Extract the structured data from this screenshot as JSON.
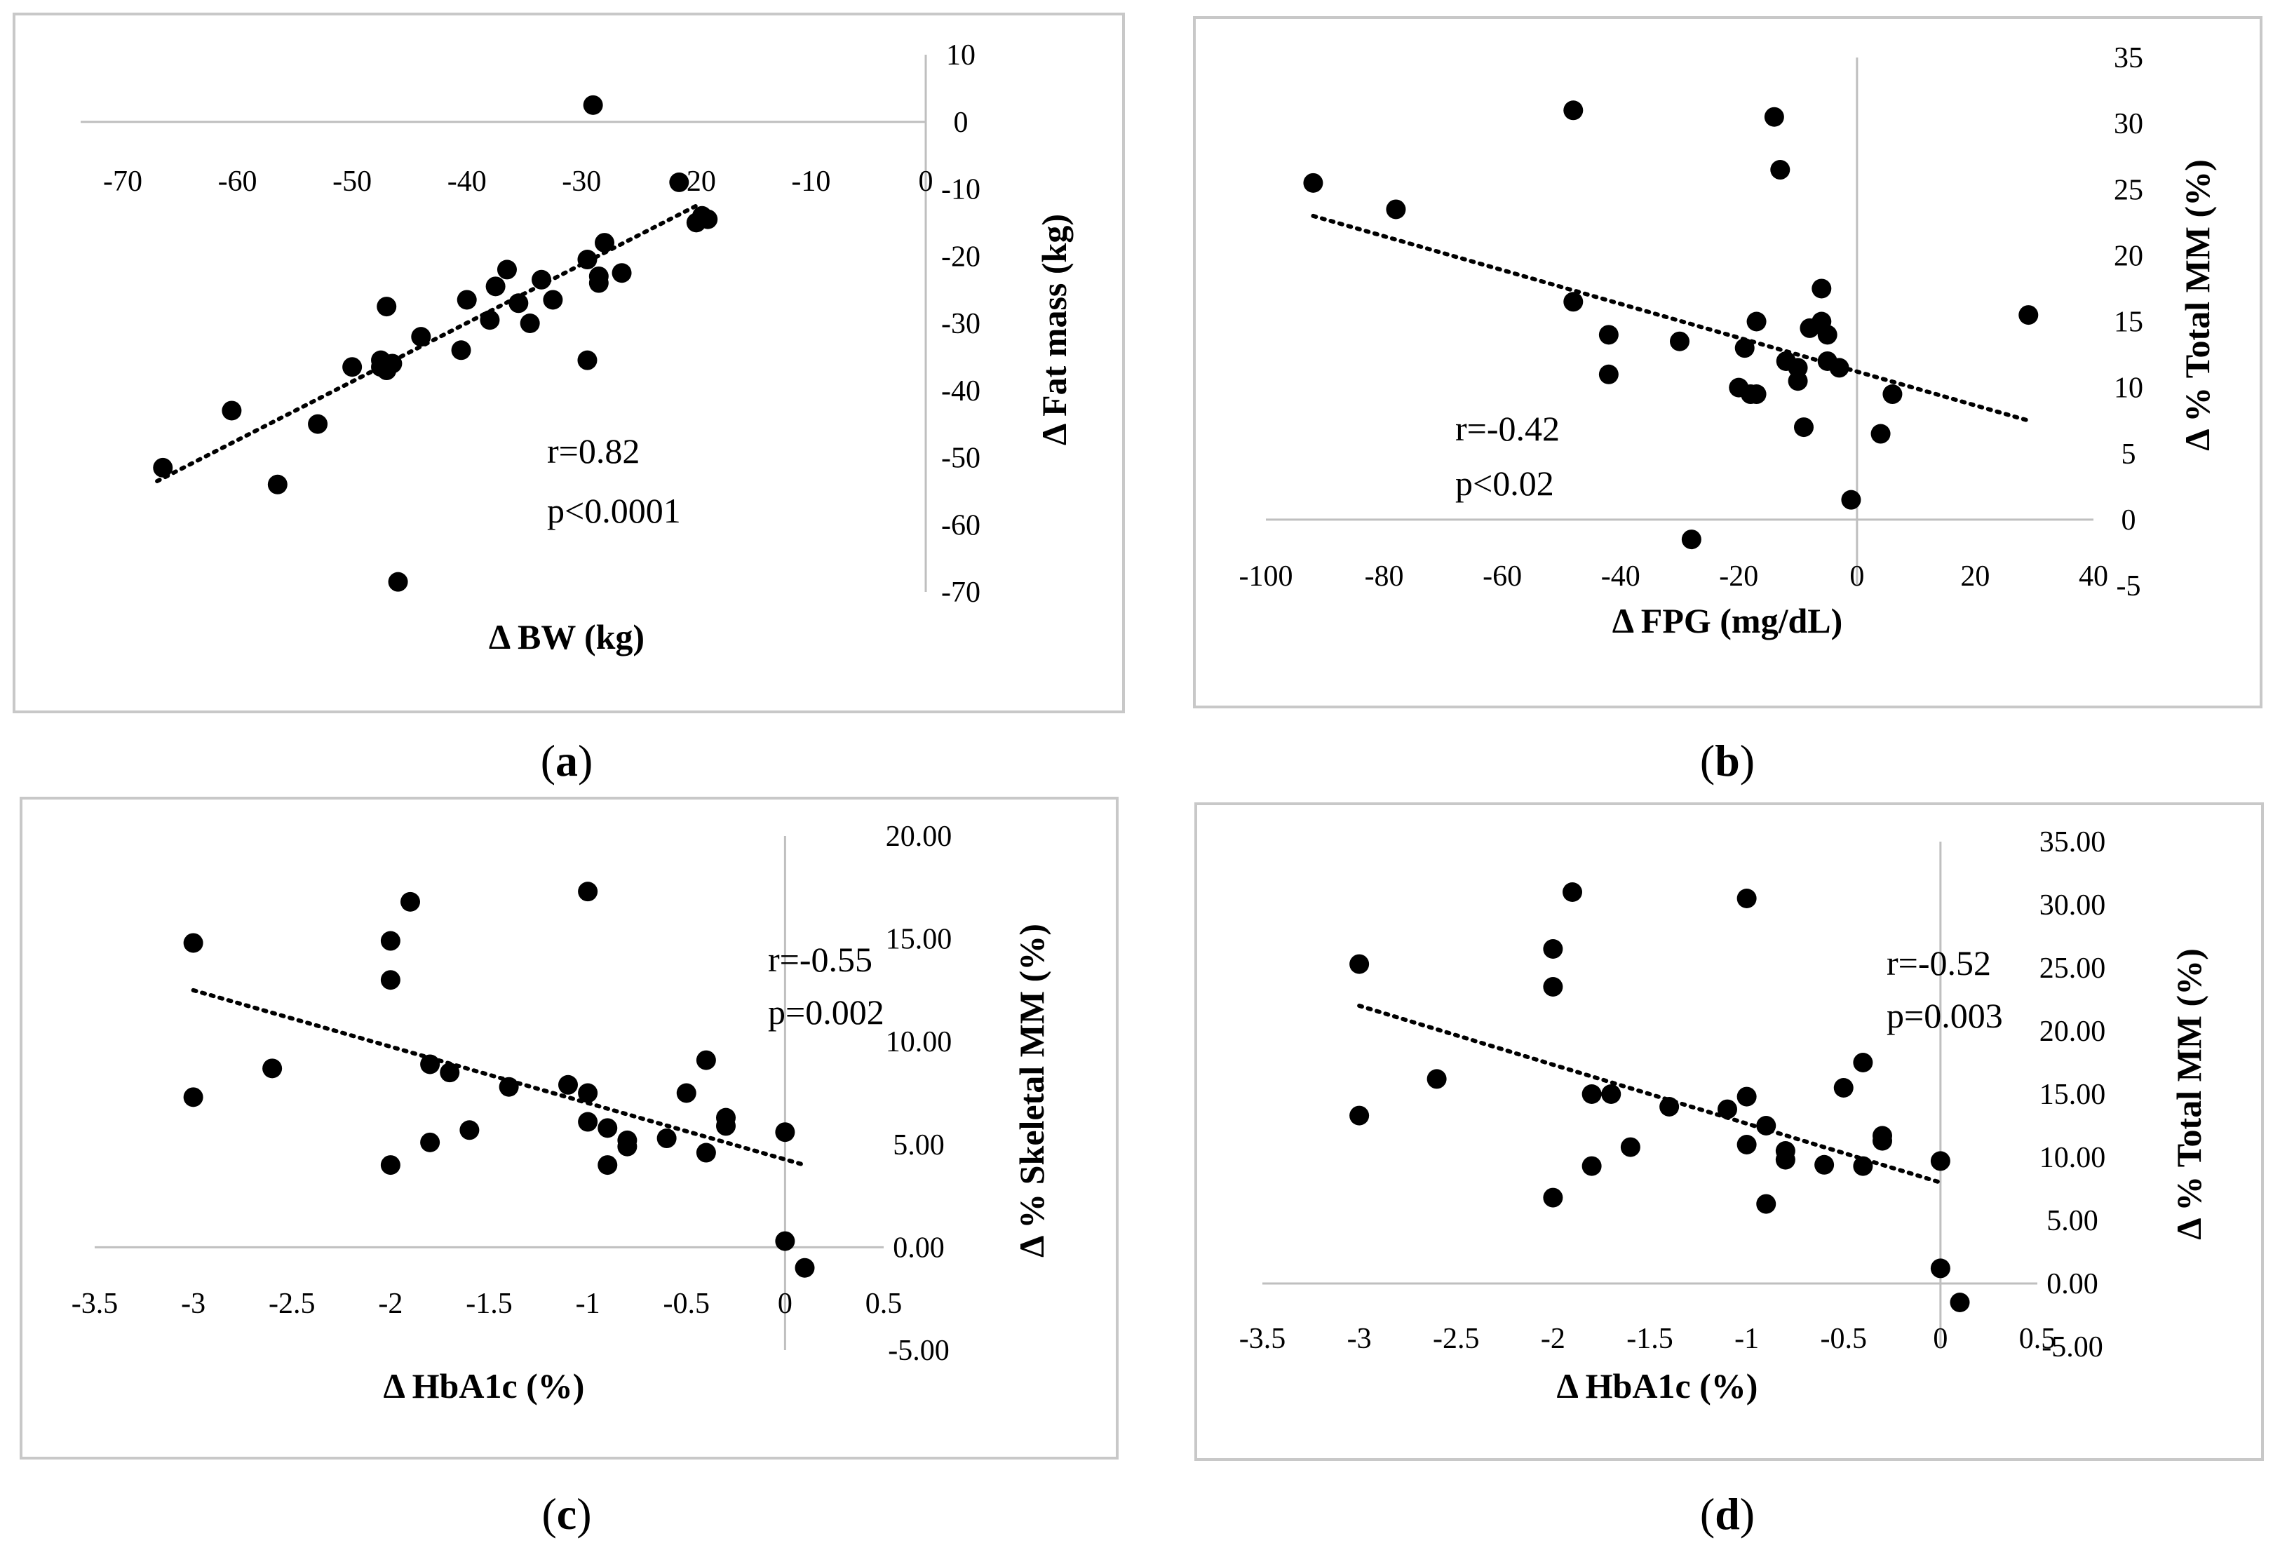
{
  "chart_data": [
    {
      "type": "scatter",
      "panel": "a",
      "xlabel": "Δ BW (kg)",
      "ylabel": "Δ Fat mass (kg)",
      "xlim": [
        -70,
        0
      ],
      "ylim": [
        -70,
        10
      ],
      "x_ticks": [
        "-70",
        "-60",
        "-50",
        "-40",
        "-30",
        "-20",
        "-10",
        "0"
      ],
      "y_ticks": [
        "10",
        "0",
        "-10",
        "-20",
        "-30",
        "-40",
        "-50",
        "-60",
        "-70"
      ],
      "annotation": [
        "r=0.82",
        "p<0.0001"
      ],
      "trendline": [
        [
          -67,
          -53.5
        ],
        [
          -20,
          -12.5
        ]
      ],
      "points": [
        [
          -66.5,
          -51.5
        ],
        [
          -60.5,
          -43
        ],
        [
          -56.5,
          -54
        ],
        [
          -53,
          -45
        ],
        [
          -50,
          -36.5
        ],
        [
          -47.5,
          -35.5
        ],
        [
          -47.5,
          -36.5
        ],
        [
          -47,
          -37
        ],
        [
          -47,
          -27.5
        ],
        [
          -46.5,
          -36
        ],
        [
          -46,
          -68.5
        ],
        [
          -44,
          -32
        ],
        [
          -40.5,
          -34
        ],
        [
          -40,
          -26.5
        ],
        [
          -38,
          -29.5
        ],
        [
          -37.5,
          -24.5
        ],
        [
          -36.5,
          -22
        ],
        [
          -35.5,
          -27
        ],
        [
          -34.5,
          -30
        ],
        [
          -33.5,
          -23.5
        ],
        [
          -32.5,
          -26.5
        ],
        [
          -29.5,
          -20.5
        ],
        [
          -29.5,
          -35.5
        ],
        [
          -29,
          2.5
        ],
        [
          -28.5,
          -23
        ],
        [
          -28.5,
          -24
        ],
        [
          -28,
          -18
        ],
        [
          -26.5,
          -22.5
        ],
        [
          -21.5,
          -9
        ],
        [
          -20,
          -15
        ],
        [
          -19.5,
          -14
        ],
        [
          -19,
          -14.5
        ]
      ]
    },
    {
      "type": "scatter",
      "panel": "b",
      "xlabel": "Δ FPG (mg/dL)",
      "ylabel": "Δ % Total MM (%)",
      "xlim": [
        -100,
        40
      ],
      "ylim": [
        -5,
        35
      ],
      "x_ticks": [
        "-100",
        "-80",
        "-60",
        "-40",
        "-20",
        "0",
        "20",
        "40"
      ],
      "y_ticks": [
        "35",
        "30",
        "25",
        "20",
        "15",
        "10",
        "5",
        "0",
        "-5"
      ],
      "annotation": [
        "r=-0.42",
        "p<0.02"
      ],
      "trendline": [
        [
          -92,
          23
        ],
        [
          29,
          7.5
        ]
      ],
      "points": [
        [
          -92,
          25.5
        ],
        [
          -78,
          23.5
        ],
        [
          -48,
          31
        ],
        [
          -48,
          16.5
        ],
        [
          -42,
          14
        ],
        [
          -42,
          11
        ],
        [
          -30,
          13.5
        ],
        [
          -28,
          -1.5
        ],
        [
          -20,
          10
        ],
        [
          -19,
          13
        ],
        [
          -18,
          9.5
        ],
        [
          -17,
          15
        ],
        [
          -17,
          9.5
        ],
        [
          -14,
          30.5
        ],
        [
          -13,
          26.5
        ],
        [
          -12,
          12
        ],
        [
          -10,
          11.5
        ],
        [
          -10,
          10.5
        ],
        [
          -9,
          7
        ],
        [
          -8,
          14.5
        ],
        [
          -6,
          17.5
        ],
        [
          -6,
          15
        ],
        [
          -5,
          14
        ],
        [
          -5,
          12
        ],
        [
          -3,
          11.5
        ],
        [
          -1,
          1.5
        ],
        [
          4,
          6.5
        ],
        [
          6,
          9.5
        ],
        [
          29,
          15.5
        ]
      ]
    },
    {
      "type": "scatter",
      "panel": "c",
      "xlabel": "Δ HbA1c (%)",
      "ylabel": "Δ % Skeletal MM (%)",
      "xlim": [
        -3.5,
        0.5
      ],
      "ylim": [
        -5,
        20
      ],
      "x_ticks": [
        "-3.5",
        "-3",
        "-2.5",
        "-2",
        "-1.5",
        "-1",
        "-0.5",
        "0",
        "0.5"
      ],
      "y_ticks": [
        "20.00",
        "15.00",
        "10.00",
        "5.00",
        "0.00",
        "-5.00"
      ],
      "annotation": [
        "r=-0.55",
        "p=0.002"
      ],
      "trendline": [
        [
          -3,
          12.5
        ],
        [
          0.1,
          4
        ]
      ],
      "points": [
        [
          -3,
          14.8
        ],
        [
          -3,
          7.3
        ],
        [
          -2.6,
          8.7
        ],
        [
          -2,
          14.9
        ],
        [
          -2,
          13
        ],
        [
          -2,
          4
        ],
        [
          -1.9,
          16.8
        ],
        [
          -1.8,
          8.9
        ],
        [
          -1.8,
          5.1
        ],
        [
          -1.7,
          8.5
        ],
        [
          -1.6,
          5.7
        ],
        [
          -1.4,
          7.8
        ],
        [
          -1.1,
          7.9
        ],
        [
          -1,
          17.3
        ],
        [
          -1,
          7.5
        ],
        [
          -1,
          6.1
        ],
        [
          -0.9,
          5.8
        ],
        [
          -0.9,
          4
        ],
        [
          -0.8,
          5.2
        ],
        [
          -0.8,
          4.9
        ],
        [
          -0.6,
          5.3
        ],
        [
          -0.5,
          7.5
        ],
        [
          -0.4,
          9.1
        ],
        [
          -0.4,
          4.6
        ],
        [
          -0.3,
          6.3
        ],
        [
          -0.3,
          5.9
        ],
        [
          0,
          5.6
        ],
        [
          0,
          0.3
        ],
        [
          0.1,
          -1
        ]
      ]
    },
    {
      "type": "scatter",
      "panel": "d",
      "xlabel": "Δ HbA1c (%)",
      "ylabel": "Δ % Total MM (%)",
      "xlim": [
        -3.5,
        0.5
      ],
      "ylim": [
        -5,
        35
      ],
      "x_ticks": [
        "-3.5",
        "-3",
        "-2.5",
        "-2",
        "-1.5",
        "-1",
        "-0.5",
        "0",
        "0.5"
      ],
      "y_ticks": [
        "35.00",
        "30.00",
        "25.00",
        "20.00",
        "15.00",
        "10.00",
        "5.00",
        "0.00",
        "-5.00"
      ],
      "annotation": [
        "r=-0.52",
        "p=0.003"
      ],
      "trendline": [
        [
          -3,
          22
        ],
        [
          0,
          8
        ]
      ],
      "points": [
        [
          -3,
          25.3
        ],
        [
          -3,
          13.3
        ],
        [
          -2.6,
          16.2
        ],
        [
          -2,
          26.5
        ],
        [
          -2,
          23.5
        ],
        [
          -2,
          6.8
        ],
        [
          -1.9,
          31
        ],
        [
          -1.8,
          15
        ],
        [
          -1.8,
          9.3
        ],
        [
          -1.7,
          15
        ],
        [
          -1.6,
          10.8
        ],
        [
          -1.4,
          14
        ],
        [
          -1.1,
          13.8
        ],
        [
          -1,
          30.5
        ],
        [
          -1,
          14.8
        ],
        [
          -1,
          11
        ],
        [
          -0.9,
          12.5
        ],
        [
          -0.9,
          6.3
        ],
        [
          -0.8,
          10.5
        ],
        [
          -0.8,
          9.8
        ],
        [
          -0.6,
          9.4
        ],
        [
          -0.5,
          15.5
        ],
        [
          -0.4,
          17.5
        ],
        [
          -0.4,
          9.3
        ],
        [
          -0.3,
          11.7
        ],
        [
          -0.3,
          11.3
        ],
        [
          0,
          9.7
        ],
        [
          0,
          1.2
        ],
        [
          0.1,
          -1.5
        ]
      ]
    }
  ],
  "panel_labels": [
    {
      "open": "(",
      "letter": "a",
      "close": ")"
    },
    {
      "open": "(",
      "letter": "b",
      "close": ")"
    },
    {
      "open": "(",
      "letter": "c",
      "close": ")"
    },
    {
      "open": "(",
      "letter": "d",
      "close": ")"
    }
  ]
}
